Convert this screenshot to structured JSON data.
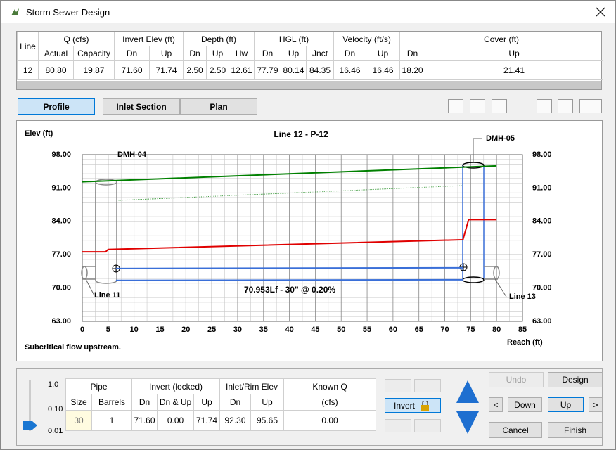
{
  "window": {
    "title": "Storm Sewer Design"
  },
  "results_table": {
    "groups": [
      "Line",
      "Q (cfs)",
      "Invert Elev (ft)",
      "Depth (ft)",
      "HGL (ft)",
      "Velocity (ft/s)",
      "Cover (ft)"
    ],
    "columns": [
      "Actual",
      "Capacity",
      "Dn",
      "Up",
      "Dn",
      "Up",
      "Hw",
      "Dn",
      "Up",
      "Jnct",
      "Dn",
      "Up",
      "Dn",
      "Up"
    ],
    "rows": [
      [
        "12",
        "80.80",
        "19.87",
        "71.60",
        "71.74",
        "2.50",
        "2.50",
        "12.61",
        "77.79",
        "80.14",
        "84.35",
        "16.46",
        "16.46",
        "18.20",
        "21.41"
      ]
    ]
  },
  "tabs": [
    "Profile",
    "Inlet Section",
    "Plan"
  ],
  "profile": {
    "type": "line",
    "title": "Line 12 - P-12",
    "y_label": "Elev (ft)",
    "x_label": "Reach (ft)",
    "note": "Subcritical flow upstream.",
    "pipe_label": "70.953Lf - 30\" @ 0.20%",
    "structures": [
      "DMH-04",
      "DMH-05"
    ],
    "connections": [
      "Line 11",
      "Line 13"
    ],
    "xlim": [
      0,
      85
    ],
    "ylim": [
      63,
      98
    ],
    "xticks": [
      0,
      5,
      10,
      15,
      20,
      25,
      30,
      35,
      40,
      45,
      50,
      55,
      60,
      65,
      70,
      75,
      80,
      85
    ],
    "yticks": [
      {
        "value": 63,
        "label": "63.00"
      },
      {
        "value": 70,
        "label": "70.00"
      },
      {
        "value": 77,
        "label": "77.00"
      },
      {
        "value": 84,
        "label": "84.00"
      },
      {
        "value": 91,
        "label": "91.00"
      },
      {
        "value": 98,
        "label": "98.00"
      }
    ],
    "grid": true,
    "series": [
      {
        "color": "#008000",
        "x": [
          0,
          80
        ],
        "values": [
          92.3,
          95.65
        ]
      },
      {
        "color": "#3c9a3c",
        "dash": true,
        "x": [
          7,
          73.4
        ],
        "values": [
          88.4,
          91.5
        ]
      },
      {
        "color": "#e00000",
        "x": [
          0,
          4.5,
          5,
          73.5,
          74.6,
          80
        ],
        "values": [
          77.6,
          77.6,
          78.1,
          80.14,
          84.35,
          84.35
        ]
      },
      {
        "color": "#3a6fd8",
        "x": [
          6.5,
          73.5
        ],
        "values": [
          74.1,
          74.24
        ]
      },
      {
        "color": "#3a6fd8",
        "x": [
          6.5,
          73.5
        ],
        "values": [
          71.6,
          71.74
        ]
      }
    ]
  },
  "input_panel": {
    "scale_labels": [
      "1.0",
      "0.10",
      "0.01"
    ],
    "pipe_table": {
      "groups": [
        "Pipe",
        "Invert (locked)",
        "Inlet/Rim Elev",
        "Known Q"
      ],
      "columns": [
        "Size",
        "Barrels",
        "Dn",
        "Dn & Up",
        "Up",
        "Dn",
        "Up",
        "(cfs)"
      ],
      "rows": [
        [
          "30",
          "1",
          "71.60",
          "0.00",
          "71.74",
          "92.30",
          "95.65",
          "0.00"
        ]
      ]
    },
    "buttons": {
      "invert": "Invert",
      "undo": "Undo",
      "design": "Design",
      "prev": "<",
      "down": "Down",
      "up": "Up",
      "next": ">",
      "cancel": "Cancel",
      "finish": "Finish"
    }
  }
}
